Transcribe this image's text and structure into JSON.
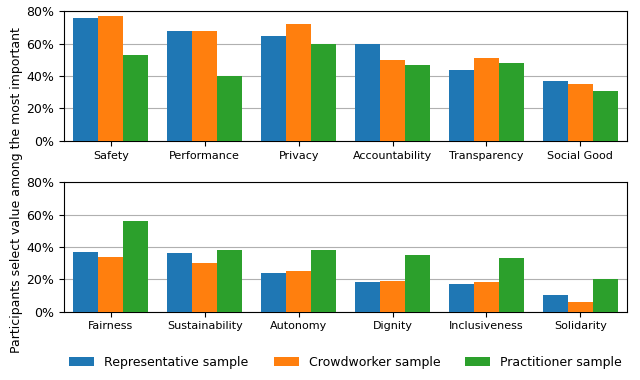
{
  "chart_data": [
    {
      "type": "bar",
      "y_label": "Participants select value among the most important",
      "categories": [
        "Safety",
        "Performance",
        "Privacy",
        "Accountability",
        "Transparency",
        "Social Good"
      ],
      "series": [
        {
          "name": "Representative sample",
          "values": [
            0.76,
            0.68,
            0.65,
            0.6,
            0.44,
            0.37
          ]
        },
        {
          "name": "Crowdworker sample",
          "values": [
            0.77,
            0.68,
            0.72,
            0.5,
            0.51,
            0.35
          ]
        },
        {
          "name": "Practitioner sample",
          "values": [
            0.53,
            0.4,
            0.6,
            0.47,
            0.48,
            0.31
          ]
        }
      ],
      "ylim": [
        0,
        0.8
      ],
      "yticks": [
        {
          "value": 0.0,
          "label": "0%"
        },
        {
          "value": 0.2,
          "label": "20%"
        },
        {
          "value": 0.4,
          "label": "40%"
        },
        {
          "value": 0.6,
          "label": "60%"
        },
        {
          "value": 0.8,
          "label": "80%"
        }
      ],
      "grid": true,
      "legend": "lower center"
    },
    {
      "type": "bar",
      "categories": [
        "Fairness",
        "Sustainability",
        "Autonomy",
        "Dignity",
        "Inclusiveness",
        "Solidarity"
      ],
      "series": [
        {
          "name": "Representative sample",
          "values": [
            0.37,
            0.36,
            0.24,
            0.18,
            0.17,
            0.1
          ]
        },
        {
          "name": "Crowdworker sample",
          "values": [
            0.34,
            0.3,
            0.25,
            0.19,
            0.18,
            0.06
          ]
        },
        {
          "name": "Practitioner sample",
          "values": [
            0.56,
            0.38,
            0.38,
            0.35,
            0.33,
            0.2
          ]
        }
      ],
      "ylim": [
        0,
        0.8
      ],
      "yticks": [
        {
          "value": 0.0,
          "label": "0%"
        },
        {
          "value": 0.2,
          "label": "20%"
        },
        {
          "value": 0.4,
          "label": "40%"
        },
        {
          "value": 0.6,
          "label": "60%"
        },
        {
          "value": 0.8,
          "label": "80%"
        }
      ],
      "grid": true
    }
  ]
}
